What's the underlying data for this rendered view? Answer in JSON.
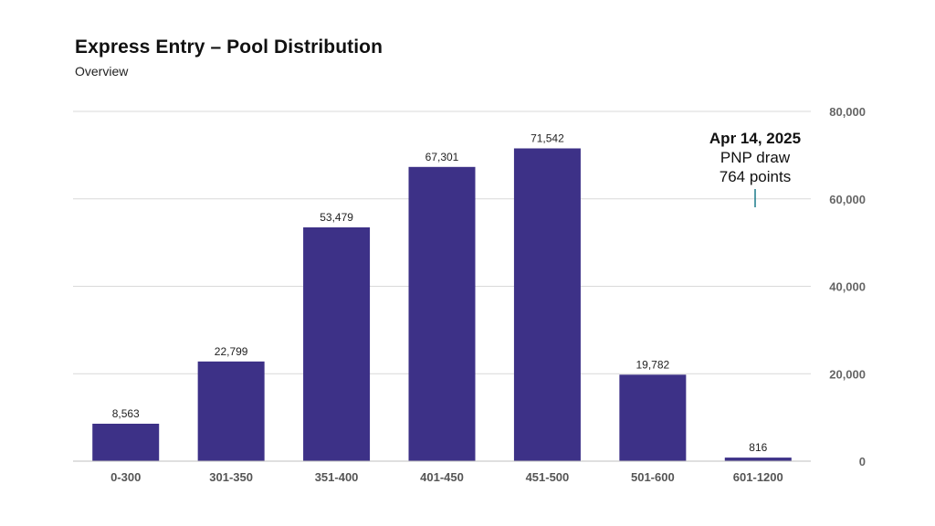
{
  "chart_data": {
    "type": "bar",
    "title": "Express Entry – Pool Distribution",
    "subtitle": "Overview",
    "categories": [
      "0-300",
      "301-350",
      "351-400",
      "401-450",
      "451-500",
      "501-600",
      "601-1200"
    ],
    "values": [
      8563,
      22799,
      53479,
      67301,
      71542,
      19782,
      816
    ],
    "value_labels": [
      "8,563",
      "22,799",
      "53,479",
      "67,301",
      "71,542",
      "19,782",
      "816"
    ],
    "ylim": [
      0,
      80000
    ],
    "yticks": [
      0,
      20000,
      40000,
      60000,
      80000
    ],
    "ytick_labels": [
      "0",
      "20,000",
      "40,000",
      "60,000",
      "80,000"
    ],
    "y_axis_side": "right",
    "grid": true,
    "xlabel": "",
    "ylabel": "",
    "bar_color": "#3d3187",
    "annotation": {
      "date": "Apr 14, 2025",
      "line1": "PNP draw",
      "line2": "764 points",
      "marker_color": "#1b7a8a"
    }
  }
}
